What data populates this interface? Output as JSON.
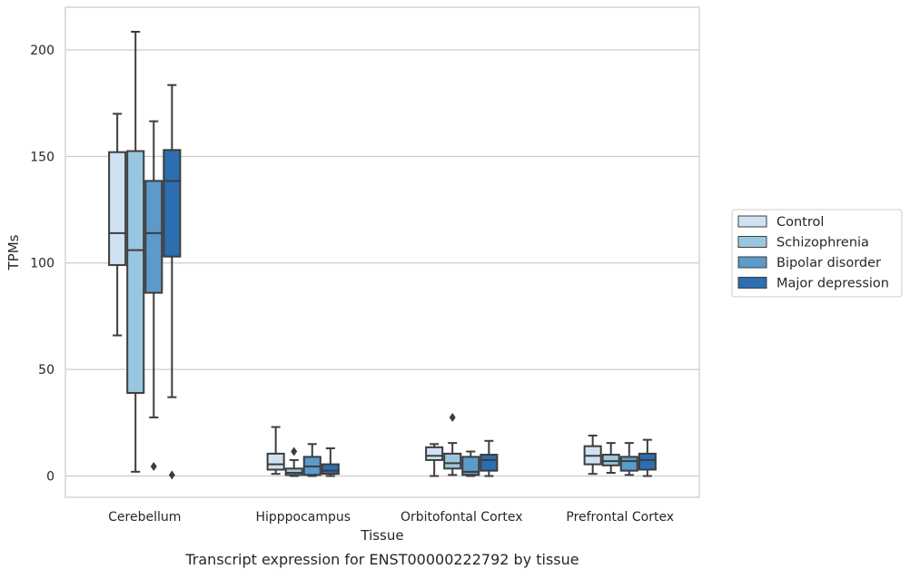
{
  "chart_data": {
    "type": "boxplot",
    "title": "Transcript expression for ENST00000222792 by tissue",
    "xlabel": "Tissue",
    "ylabel": "TPMs",
    "ylim": [
      -10,
      220
    ],
    "yticks": [
      0,
      50,
      100,
      150,
      200
    ],
    "grid": "horizontal",
    "legend_position": "right",
    "categories": [
      "Cerebellum",
      "Hipppocampus",
      "Orbitofontal Cortex",
      "Prefrontal Cortex"
    ],
    "series": [
      {
        "name": "Control",
        "color": "#d0e2f2",
        "boxes": [
          {
            "whislo": 66,
            "q1": 99,
            "med": 114,
            "q3": 152,
            "whishi": 170,
            "fliers": []
          },
          {
            "whislo": 1,
            "q1": 3,
            "med": 5.5,
            "q3": 10.5,
            "whishi": 23,
            "fliers": []
          },
          {
            "whislo": 0,
            "q1": 7.5,
            "med": 9.5,
            "q3": 13.5,
            "whishi": 15,
            "fliers": []
          },
          {
            "whislo": 1,
            "q1": 5.5,
            "med": 9.5,
            "q3": 14,
            "whishi": 19,
            "fliers": []
          }
        ]
      },
      {
        "name": "Schizophrenia",
        "color": "#9ac7e0",
        "boxes": [
          {
            "whislo": 2,
            "q1": 39,
            "med": 106,
            "q3": 152.5,
            "whishi": 208.5,
            "fliers": []
          },
          {
            "whislo": 0,
            "q1": 0.5,
            "med": 1.5,
            "q3": 3.5,
            "whishi": 7.5,
            "fliers": [
              11.5
            ]
          },
          {
            "whislo": 0.5,
            "q1": 3.5,
            "med": 6,
            "q3": 10.5,
            "whishi": 15.5,
            "fliers": [
              27.5
            ]
          },
          {
            "whislo": 1.5,
            "q1": 5,
            "med": 7,
            "q3": 10,
            "whishi": 15.5,
            "fliers": []
          }
        ]
      },
      {
        "name": "Bipolar disorder",
        "color": "#5b9ac9",
        "boxes": [
          {
            "whislo": 27.5,
            "q1": 86,
            "med": 114,
            "q3": 138.5,
            "whishi": 166.5,
            "fliers": [
              4.5
            ]
          },
          {
            "whislo": 0,
            "q1": 0.5,
            "med": 4.5,
            "q3": 9,
            "whishi": 15,
            "fliers": []
          },
          {
            "whislo": 0,
            "q1": 0.5,
            "med": 2,
            "q3": 9,
            "whishi": 11.5,
            "fliers": []
          },
          {
            "whislo": 0.5,
            "q1": 2.5,
            "med": 7,
            "q3": 9,
            "whishi": 15.5,
            "fliers": []
          }
        ]
      },
      {
        "name": "Major depression",
        "color": "#2d6eb0",
        "boxes": [
          {
            "whislo": 37,
            "q1": 103,
            "med": 138.5,
            "q3": 153,
            "whishi": 183.5,
            "fliers": [
              0.5
            ]
          },
          {
            "whislo": 0,
            "q1": 1,
            "med": 2.5,
            "q3": 5.5,
            "whishi": 13,
            "fliers": []
          },
          {
            "whislo": 0,
            "q1": 2.5,
            "med": 7.5,
            "q3": 10,
            "whishi": 16.5,
            "fliers": []
          },
          {
            "whislo": 0,
            "q1": 3,
            "med": 7.5,
            "q3": 10.5,
            "whishi": 17,
            "fliers": []
          }
        ]
      }
    ]
  }
}
